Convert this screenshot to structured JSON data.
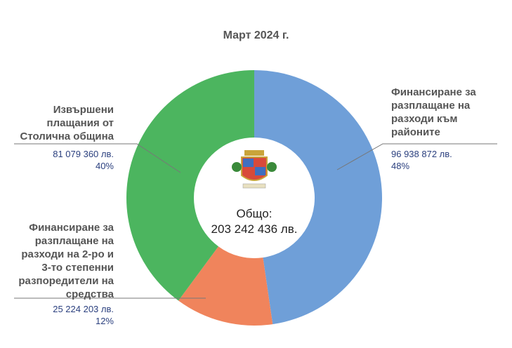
{
  "chart_data": {
    "type": "donut",
    "title": "Март 2024 г.",
    "categories": [
      "Финансиране за разплащане на разходи към районите",
      "Финансиране за разплащане на разходи на 2-ро и 3-то степенни разпоредители на средства",
      "Извършени плащания от Столична община"
    ],
    "values": [
      96938872,
      25224203,
      81079360
    ],
    "value_labels": [
      "96 938 872 лв.",
      "25 224 203 лв.",
      "81 079 360 лв."
    ],
    "shares": [
      {
        "value": 48,
        "label": "48%"
      },
      {
        "value": 12,
        "label": "12%"
      },
      {
        "value": 40,
        "label": "40%"
      }
    ],
    "colors": [
      "#6f9fd8",
      "#f0845c",
      "#4cb55f"
    ],
    "total_label": "Общо:",
    "total": {
      "value": 203242436,
      "label": "203 242 436 лв."
    }
  }
}
